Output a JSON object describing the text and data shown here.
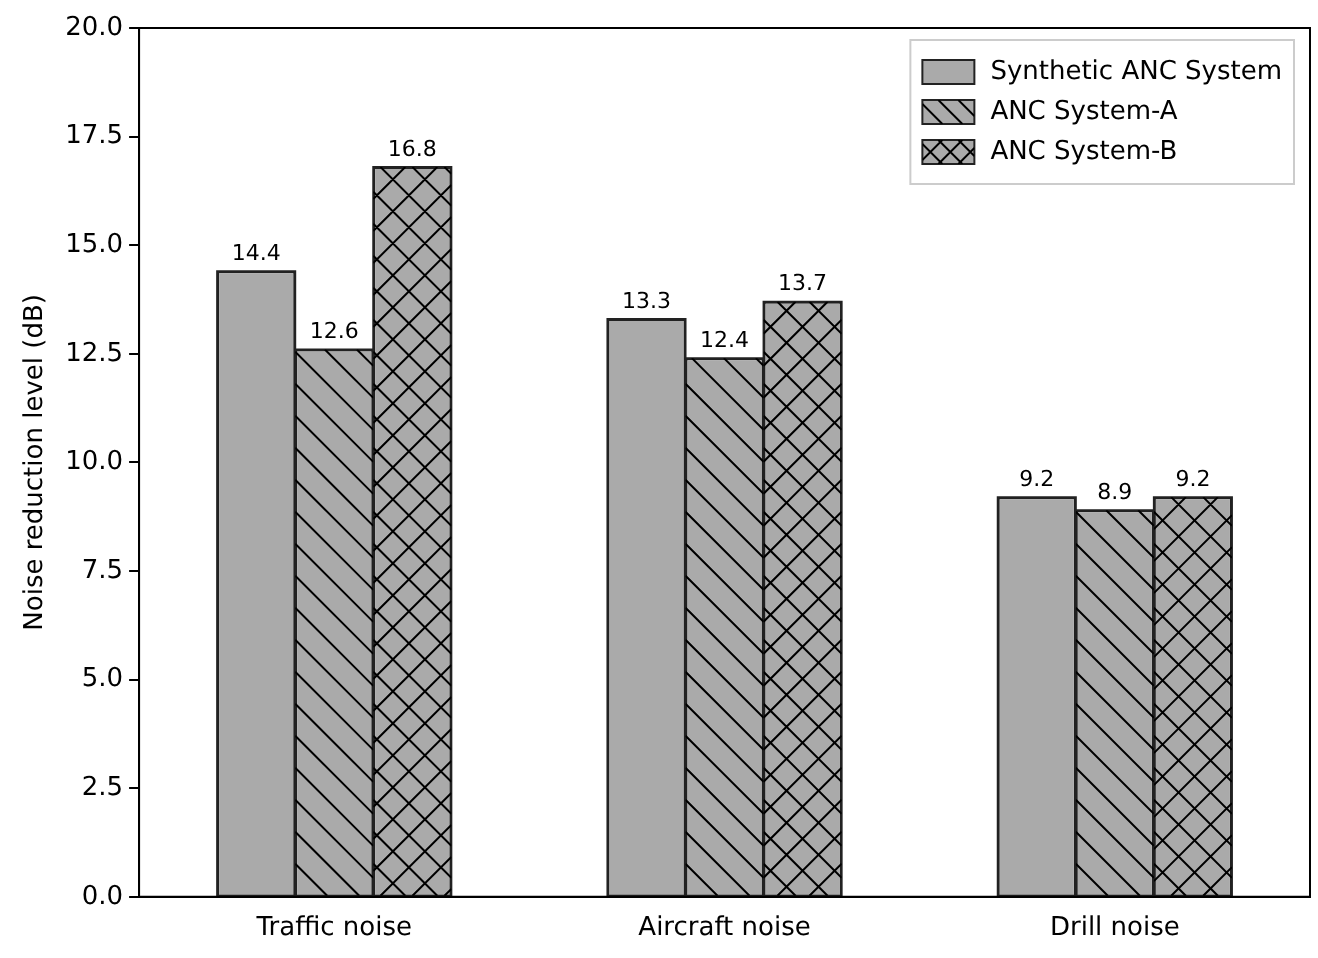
{
  "chart_data": {
    "type": "bar",
    "ylabel": "Noise reduction level (dB)",
    "categories": [
      "Traffic noise",
      "Aircraft noise",
      "Drill noise"
    ],
    "series": [
      {
        "name": "Synthetic ANC System",
        "color": "#aaaaaa",
        "values": [
          14.4,
          13.3,
          9.2
        ]
      },
      {
        "name": "ANC System-A",
        "color": "#aaaaaa",
        "values": [
          12.6,
          12.4,
          8.9
        ]
      },
      {
        "name": "ANC System-B",
        "color": "#aaaaaa",
        "values": [
          16.8,
          13.7,
          9.2
        ]
      }
    ],
    "ylim": [
      0,
      20
    ],
    "yticks": [
      {
        "value": 0,
        "label": "0.0"
      },
      {
        "value": 2.5,
        "label": "2.5"
      },
      {
        "value": 5,
        "label": "5.0"
      },
      {
        "value": 7.5,
        "label": "7.5"
      },
      {
        "value": 10,
        "label": "10.0"
      },
      {
        "value": 12.5,
        "label": "12.5"
      },
      {
        "value": 15,
        "label": "15.0"
      },
      {
        "value": 17.5,
        "label": "17.5"
      },
      {
        "value": 20,
        "label": "20.0"
      }
    ],
    "grid": false,
    "legend": "top right",
    "data_labels": true
  }
}
